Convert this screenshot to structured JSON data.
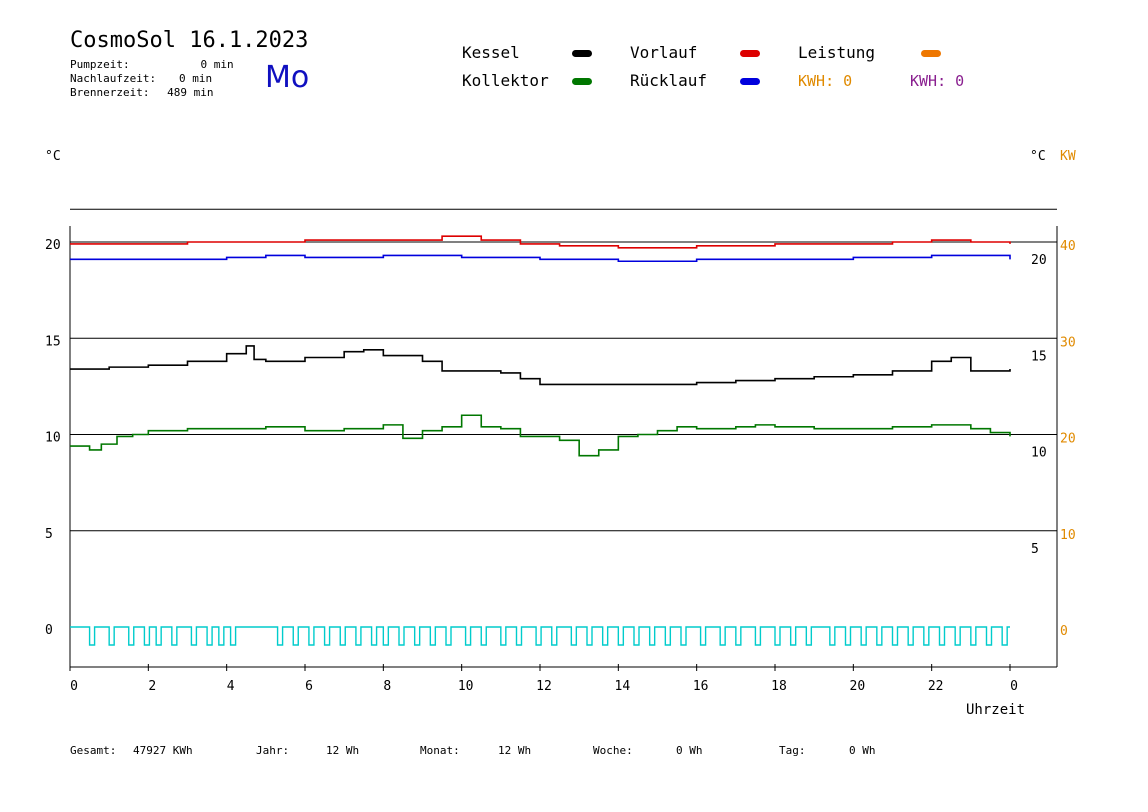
{
  "header": {
    "title": "CosmoSol 16.1.2023",
    "day": "Mo",
    "stats": [
      {
        "label": "Pumpzeit:",
        "value": "0 min"
      },
      {
        "label": "Nachlaufzeit:",
        "value": "0 min"
      },
      {
        "label": "Brennerzeit:",
        "value": "489 min"
      }
    ]
  },
  "legend": {
    "items": [
      {
        "label": "Kessel",
        "color": "#000000"
      },
      {
        "label": "Kollektor",
        "color": "#007700"
      },
      {
        "label": "Vorlauf",
        "color": "#dd0000"
      },
      {
        "label": "Rücklauf",
        "color": "#0000dd"
      },
      {
        "label": "Leistung",
        "color": "#ee7700"
      }
    ],
    "kwh_left": "KWH: 0",
    "kwh_right": "KWH: 0",
    "kwh_left_color": "#e08a00",
    "kwh_right_color": "#8a2090"
  },
  "axes": {
    "left_unit": "°C",
    "right_unit_c": "°C",
    "right_unit_kw": "KW",
    "kw_color": "#e08a00",
    "xlabel": "Uhrzeit"
  },
  "footer": {
    "gesamt_label": "Gesamt:",
    "gesamt_value": "47927 KWh",
    "jahr_label": "Jahr:",
    "jahr_value": "12 Wh",
    "monat_label": "Monat:",
    "monat_value": "12 Wh",
    "woche_label": "Woche:",
    "woche_value": "0 Wh",
    "tag_label": "Tag:",
    "tag_value": "0 Wh"
  },
  "chart_data": {
    "type": "line",
    "x_range": [
      0,
      24
    ],
    "x_ticks": [
      "0",
      "2",
      "4",
      "6",
      "8",
      "10",
      "12",
      "14",
      "16",
      "18",
      "20",
      "22",
      "0"
    ],
    "ylim_left": [
      -1.5,
      21.7
    ],
    "y_ticks_left": [
      "20",
      "15",
      "10",
      "5",
      "0"
    ],
    "y_ticks_right_c": [
      "20",
      "15",
      "10",
      "5"
    ],
    "y_ticks_right_kw": [
      "40",
      "30",
      "20",
      "10",
      "0"
    ],
    "grid": "horizontal",
    "series": [
      {
        "name": "Vorlauf",
        "color": "#dd0000",
        "x": [
          0,
          2,
          3,
          4,
          6,
          8,
          9.5,
          10.5,
          11.5,
          12.5,
          14,
          16,
          18,
          20,
          21,
          22,
          23,
          24
        ],
        "y": [
          19.9,
          19.9,
          20.0,
          20.0,
          20.1,
          20.1,
          20.3,
          20.1,
          19.9,
          19.8,
          19.7,
          19.8,
          19.9,
          19.9,
          20.0,
          20.1,
          20.0,
          19.9
        ]
      },
      {
        "name": "Rücklauf",
        "color": "#0000dd",
        "x": [
          0,
          2,
          4,
          5,
          6,
          8,
          9,
          10,
          12,
          14,
          16,
          18,
          20,
          22,
          23,
          24
        ],
        "y": [
          19.1,
          19.1,
          19.2,
          19.3,
          19.2,
          19.3,
          19.3,
          19.2,
          19.1,
          19.0,
          19.1,
          19.1,
          19.2,
          19.3,
          19.3,
          19.1
        ]
      },
      {
        "name": "Kessel",
        "color": "#000000",
        "x": [
          0,
          1,
          2,
          3,
          4,
          4.5,
          4.7,
          5,
          6,
          7,
          7.5,
          8,
          9,
          9.5,
          10,
          11,
          11.5,
          12,
          13,
          14,
          15,
          16,
          17,
          18,
          19,
          20,
          21,
          22,
          22.5,
          23,
          24
        ],
        "y": [
          13.4,
          13.5,
          13.6,
          13.8,
          14.2,
          14.6,
          13.9,
          13.8,
          14.0,
          14.3,
          14.4,
          14.1,
          13.8,
          13.3,
          13.3,
          13.2,
          12.9,
          12.6,
          12.6,
          12.6,
          12.6,
          12.7,
          12.8,
          12.9,
          13.0,
          13.1,
          13.3,
          13.8,
          14.0,
          13.3,
          13.4
        ]
      },
      {
        "name": "Kollektor",
        "color": "#007700",
        "x": [
          0,
          0.5,
          0.8,
          1.2,
          1.6,
          2,
          3,
          4,
          5,
          6,
          7,
          8,
          8.5,
          9,
          9.5,
          10,
          10.5,
          11,
          11.5,
          12,
          12.5,
          13,
          13.5,
          14,
          14.5,
          15,
          15.5,
          16,
          17,
          17.5,
          18,
          19,
          20,
          21,
          22,
          23,
          23.5,
          24
        ],
        "y": [
          9.4,
          9.2,
          9.5,
          9.9,
          10.0,
          10.2,
          10.3,
          10.3,
          10.4,
          10.2,
          10.3,
          10.5,
          9.8,
          10.2,
          10.4,
          11.0,
          10.4,
          10.3,
          9.9,
          9.9,
          9.7,
          8.9,
          9.2,
          9.9,
          10.0,
          10.2,
          10.4,
          10.3,
          10.4,
          10.5,
          10.4,
          10.3,
          10.3,
          10.4,
          10.5,
          10.3,
          10.1,
          9.9
        ]
      },
      {
        "name": "Leistung",
        "color": "#ee7700",
        "x": [
          0,
          24
        ],
        "y": [
          0,
          0
        ]
      }
    ],
    "pump": {
      "color": "#00cccc",
      "on_times": [
        0.5,
        1.0,
        1.5,
        1.9,
        2.2,
        2.6,
        3.1,
        3.5,
        3.8,
        4.1,
        5.3,
        5.7,
        6.1,
        6.5,
        6.9,
        7.3,
        7.7,
        8.0,
        8.4,
        8.8,
        9.2,
        9.6,
        10.1,
        10.5,
        11.0,
        11.4,
        11.9,
        12.3,
        12.8,
        13.2,
        13.6,
        14.0,
        14.4,
        14.8,
        15.2,
        15.6,
        16.1,
        16.6,
        17.0,
        17.5,
        18.0,
        18.4,
        18.8,
        19.4,
        19.8,
        20.2,
        20.6,
        21.0,
        21.4,
        21.8,
        22.2,
        22.6,
        23.0,
        23.4,
        23.8
      ]
    }
  }
}
